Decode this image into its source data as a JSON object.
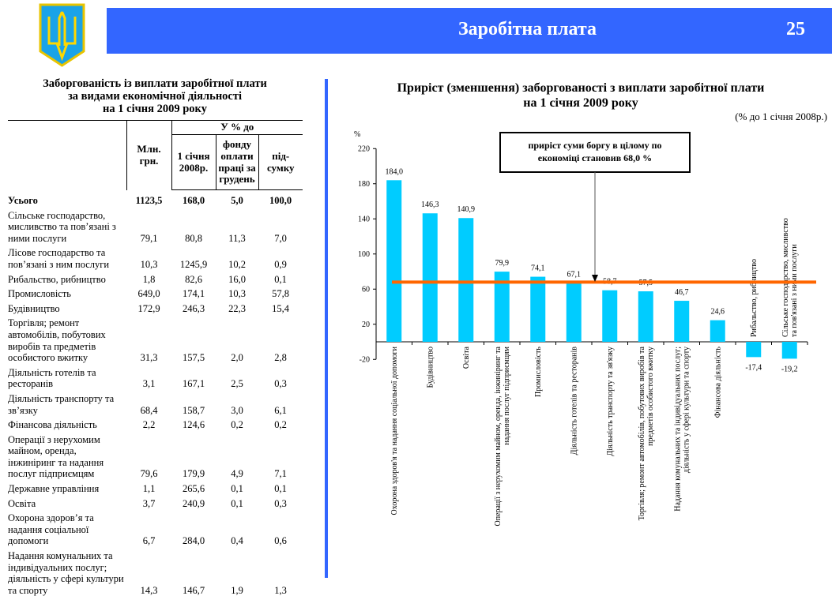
{
  "header": {
    "title": "Заробітна плата",
    "page": "25"
  },
  "table": {
    "title_lines": [
      "Заборгованість із виплати заробітної плати",
      "за видами економічної діяльності",
      "на 1 січня 2009 року"
    ],
    "col_group": "У % до",
    "columns": [
      "Млн. грн.",
      "1 січня 2008р.",
      "фонду оплати праці за грудень",
      "під-сумку"
    ],
    "total": {
      "label": "Усього",
      "values": [
        "1123,5",
        "168,0",
        "5,0",
        "100,0"
      ]
    },
    "rows": [
      {
        "label": "Сільське господарство, мисливство та пов’язані з ними послуги",
        "values": [
          "79,1",
          "80,8",
          "11,3",
          "7,0"
        ]
      },
      {
        "label": "Лісове господарство  та пов’язані з ним послуги",
        "values": [
          "10,3",
          "1245,9",
          "10,2",
          "0,9"
        ]
      },
      {
        "label": "Рибальство, рибництво",
        "values": [
          "1,8",
          "82,6",
          "16,0",
          "0,1"
        ]
      },
      {
        "label": "Промисловість",
        "values": [
          "649,0",
          "174,1",
          "10,3",
          "57,8"
        ]
      },
      {
        "label": "Будівництво",
        "values": [
          "172,9",
          "246,3",
          "22,3",
          "15,4"
        ]
      },
      {
        "label": "Торгівля; ремонт автомобілів, побутових виробів та предметів особистого вжитку",
        "values": [
          "31,3",
          "157,5",
          "2,0",
          "2,8"
        ]
      },
      {
        "label": "Діяльність готелів та ресторанів",
        "values": [
          "3,1",
          "167,1",
          "2,5",
          "0,3"
        ]
      },
      {
        "label": "Діяльність транспорту та зв’язку",
        "values": [
          "68,4",
          "158,7",
          "3,0",
          "6,1"
        ]
      },
      {
        "label": "Фінансова діяльність",
        "values": [
          "2,2",
          "124,6",
          "0,2",
          "0,2"
        ]
      },
      {
        "label": "Операції з нерухомим майном, оренда, інжиніринг та надання послуг підприємцям",
        "values": [
          "79,6",
          "179,9",
          "4,9",
          "7,1"
        ]
      },
      {
        "label": "Державне управління",
        "values": [
          "1,1",
          "265,6",
          "0,1",
          "0,1"
        ]
      },
      {
        "label": "Освіта",
        "values": [
          "3,7",
          "240,9",
          "0,1",
          "0,3"
        ]
      },
      {
        "label": "Охорона здоров’я та надання соціальної допомоги",
        "values": [
          "6,7",
          "284,0",
          "0,4",
          "0,6"
        ]
      },
      {
        "label": "Надання комунальних та індивідуальних послуг; діяльність у сфері культури та спорту",
        "values": [
          "14,3",
          "146,7",
          "1,9",
          "1,3"
        ]
      }
    ]
  },
  "chart_data": {
    "type": "bar",
    "title_lines": [
      "Приріст (зменшення) заборгованості з виплати заробітної плати",
      "на 1 січня 2009 року"
    ],
    "subtitle": "(% до 1 січня 2008р.)",
    "ylabel": "%",
    "ylim": [
      -20,
      220
    ],
    "yticks": [
      220,
      180,
      140,
      100,
      60,
      20,
      -20
    ],
    "categories": [
      [
        "Охорона здоров'я та надання соціальної допомоги"
      ],
      [
        "Будівництво"
      ],
      [
        "Освіта"
      ],
      [
        "Операції з нерухомим майном, оренда, інжиніринг та",
        "надання послуг підприємцям"
      ],
      [
        "Промисловість"
      ],
      [
        "Діяльність готелів та ресторанів"
      ],
      [
        "Діяльність транспорту та зв'язку"
      ],
      [
        "Торгівля; ремонт автомобілів, побутових виробів та",
        "предметів особистого вжитку"
      ],
      [
        "Надання комунальних та індивідуальних послуг;",
        "діяльність у сфері культури та спорту"
      ],
      [
        "Фінансова діяльність"
      ],
      [
        "Рибальство, рибництво"
      ],
      [
        "Сільське господарство, мисливство",
        "та пов'язані з ними послуги"
      ]
    ],
    "values": [
      184.0,
      146.3,
      140.9,
      79.9,
      74.1,
      67.1,
      58.7,
      57.5,
      46.7,
      24.6,
      -17.4,
      -19.2
    ],
    "value_labels": [
      "184,0",
      "146,3",
      "140,9",
      "79,9",
      "74,1",
      "67,1",
      "58,7",
      "57,5",
      "46,7",
      "24,6",
      "-17,4",
      "-19,2"
    ],
    "reference_line": {
      "value": 68.0,
      "color": "#ff6600"
    },
    "annotation_lines": [
      "приріст суми боргу в цілому по",
      "економіці становив 68,0 %"
    ],
    "bar_color": "#00ccff"
  },
  "colors": {
    "banner": "#3366ff",
    "emblem_blue": "#1aa3e8",
    "emblem_gold": "#ffd700"
  }
}
